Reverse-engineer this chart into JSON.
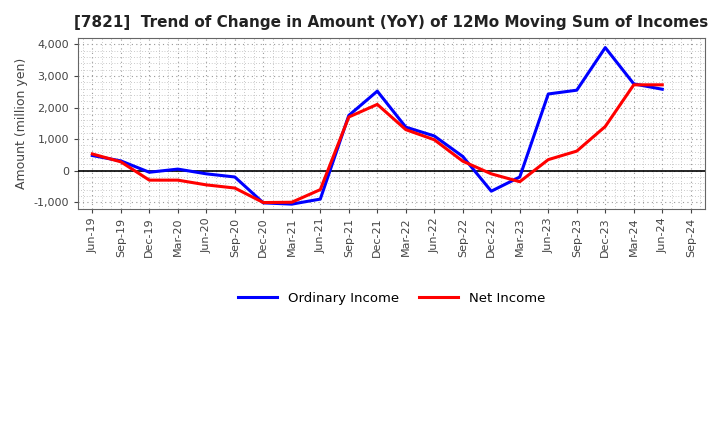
{
  "title": "[7821]  Trend of Change in Amount (YoY) of 12Mo Moving Sum of Incomes",
  "ylabel": "Amount (million yen)",
  "x_labels": [
    "Jun-19",
    "Sep-19",
    "Dec-19",
    "Mar-20",
    "Jun-20",
    "Sep-20",
    "Dec-20",
    "Mar-21",
    "Jun-21",
    "Sep-21",
    "Dec-21",
    "Mar-22",
    "Jun-22",
    "Sep-22",
    "Dec-22",
    "Mar-23",
    "Jun-23",
    "Sep-23",
    "Dec-23",
    "Mar-24",
    "Jun-24",
    "Sep-24"
  ],
  "ordinary_income": [
    480,
    310,
    -50,
    50,
    -100,
    -200,
    -1020,
    -1060,
    -900,
    1750,
    2520,
    1380,
    1100,
    450,
    -650,
    -200,
    2430,
    2550,
    3900,
    2750,
    2580,
    null
  ],
  "net_income": [
    530,
    280,
    -300,
    -300,
    -450,
    -550,
    -1010,
    -1000,
    -600,
    1700,
    2100,
    1300,
    980,
    300,
    -100,
    -350,
    350,
    620,
    1400,
    2720,
    2720,
    null
  ],
  "ordinary_income_color": "#0000FF",
  "net_income_color": "#FF0000",
  "ylim": [
    -1200,
    4200
  ],
  "yticks": [
    -1000,
    0,
    1000,
    2000,
    3000,
    4000
  ],
  "background_color": "#FFFFFF",
  "grid_color": "#999999",
  "linewidth": 2.2,
  "legend_labels": [
    "Ordinary Income",
    "Net Income"
  ],
  "minor_grid_every": 1
}
